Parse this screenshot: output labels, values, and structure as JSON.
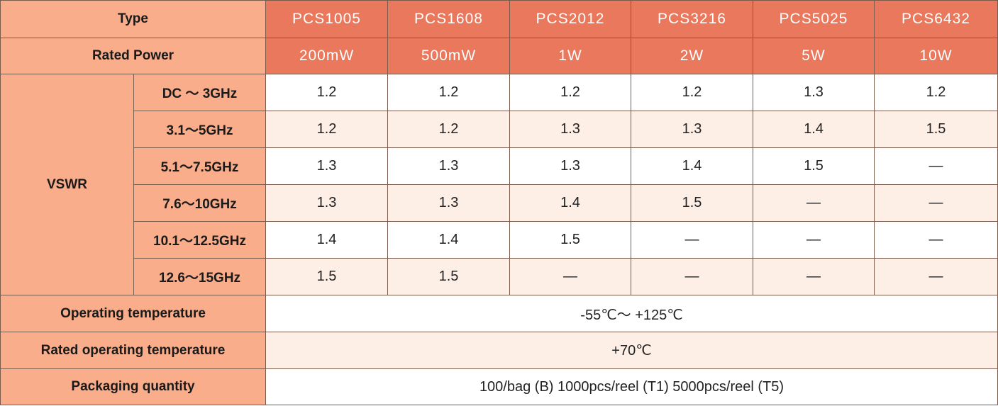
{
  "header": {
    "type_label": "Type",
    "types": [
      "PCS1005",
      "PCS1608",
      "PCS2012",
      "PCS3216",
      "PCS5025",
      "PCS6432"
    ],
    "rated_power_label": "Rated Power",
    "rated_powers": [
      "200mW",
      "500mW",
      "1W",
      "2W",
      "5W",
      "10W"
    ]
  },
  "vswr": {
    "label": "VSWR",
    "rows": [
      {
        "range": "DC ～ 3GHz",
        "values": [
          "1.2",
          "1.2",
          "1.2",
          "1.2",
          "1.3",
          "1.2"
        ]
      },
      {
        "range": "3.1～5GHz",
        "values": [
          "1.2",
          "1.2",
          "1.3",
          "1.3",
          "1.4",
          "1.5"
        ]
      },
      {
        "range": "5.1～7.5GHz",
        "values": [
          "1.3",
          "1.3",
          "1.3",
          "1.4",
          "1.5",
          "—"
        ]
      },
      {
        "range": "7.6～10GHz",
        "values": [
          "1.3",
          "1.3",
          "1.4",
          "1.5",
          "—",
          "—"
        ]
      },
      {
        "range": "10.1～12.5GHz",
        "values": [
          "1.4",
          "1.4",
          "1.5",
          "—",
          "—",
          "—"
        ]
      },
      {
        "range": "12.6～15GHz",
        "values": [
          "1.5",
          "1.5",
          "—",
          "—",
          "—",
          "—"
        ]
      }
    ]
  },
  "operating_temperature": {
    "label": "Operating temperature",
    "value": "-55℃～ +125℃"
  },
  "rated_operating_temperature": {
    "label": "Rated operating temperature",
    "value": "+70℃"
  },
  "packaging_quantity": {
    "label": "Packaging quantity",
    "value": "100/bag (B) 1000pcs/reel (T1) 5000pcs/reel (T5)"
  }
}
